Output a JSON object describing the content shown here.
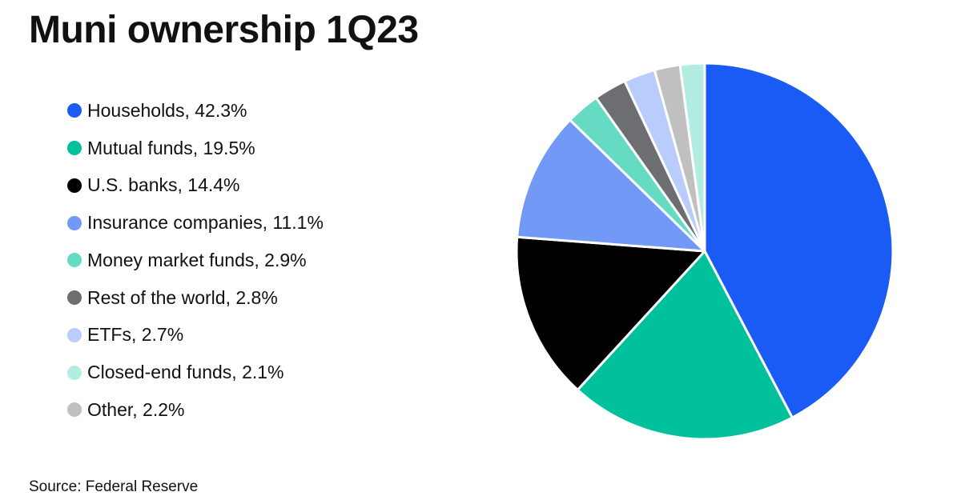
{
  "title": "Muni ownership 1Q23",
  "source": "Source: Federal Reserve",
  "chart_data": {
    "type": "pie",
    "title": "Muni ownership 1Q23",
    "unit": "%",
    "legend_position": "left",
    "slices": [
      {
        "label": "Households, 42.3%",
        "name": "Households",
        "value": 42.3,
        "color": "#1A5AF5"
      },
      {
        "label": "Mutual funds, 19.5%",
        "name": "Mutual funds",
        "value": 19.5,
        "color": "#00C19C"
      },
      {
        "label": "U.S. banks, 14.4%",
        "name": "U.S. banks",
        "value": 14.4,
        "color": "#000000"
      },
      {
        "label": "Insurance companies, 11.1%",
        "name": "Insurance companies",
        "value": 11.1,
        "color": "#7399F7"
      },
      {
        "label": "Money market funds, 2.9%",
        "name": "Money market funds",
        "value": 2.9,
        "color": "#66DBC4"
      },
      {
        "label": "Rest of the world, 2.8%",
        "name": "Rest of the world",
        "value": 2.8,
        "color": "#6D6E72"
      },
      {
        "label": "ETFs, 2.7%",
        "name": "ETFs",
        "value": 2.7,
        "color": "#BACCFB"
      },
      {
        "label": "Closed-end funds, 2.1%",
        "name": "Closed-end funds",
        "value": 2.1,
        "color": "#B3EDE1"
      },
      {
        "label": "Other, 2.2%",
        "name": "Other",
        "value": 2.2,
        "color": "#C0C0C0"
      }
    ],
    "pie_draw_order": [
      "Households",
      "Mutual funds",
      "U.S. banks",
      "Insurance companies",
      "Money market funds",
      "Rest of the world",
      "ETFs",
      "Other",
      "Closed-end funds"
    ]
  }
}
